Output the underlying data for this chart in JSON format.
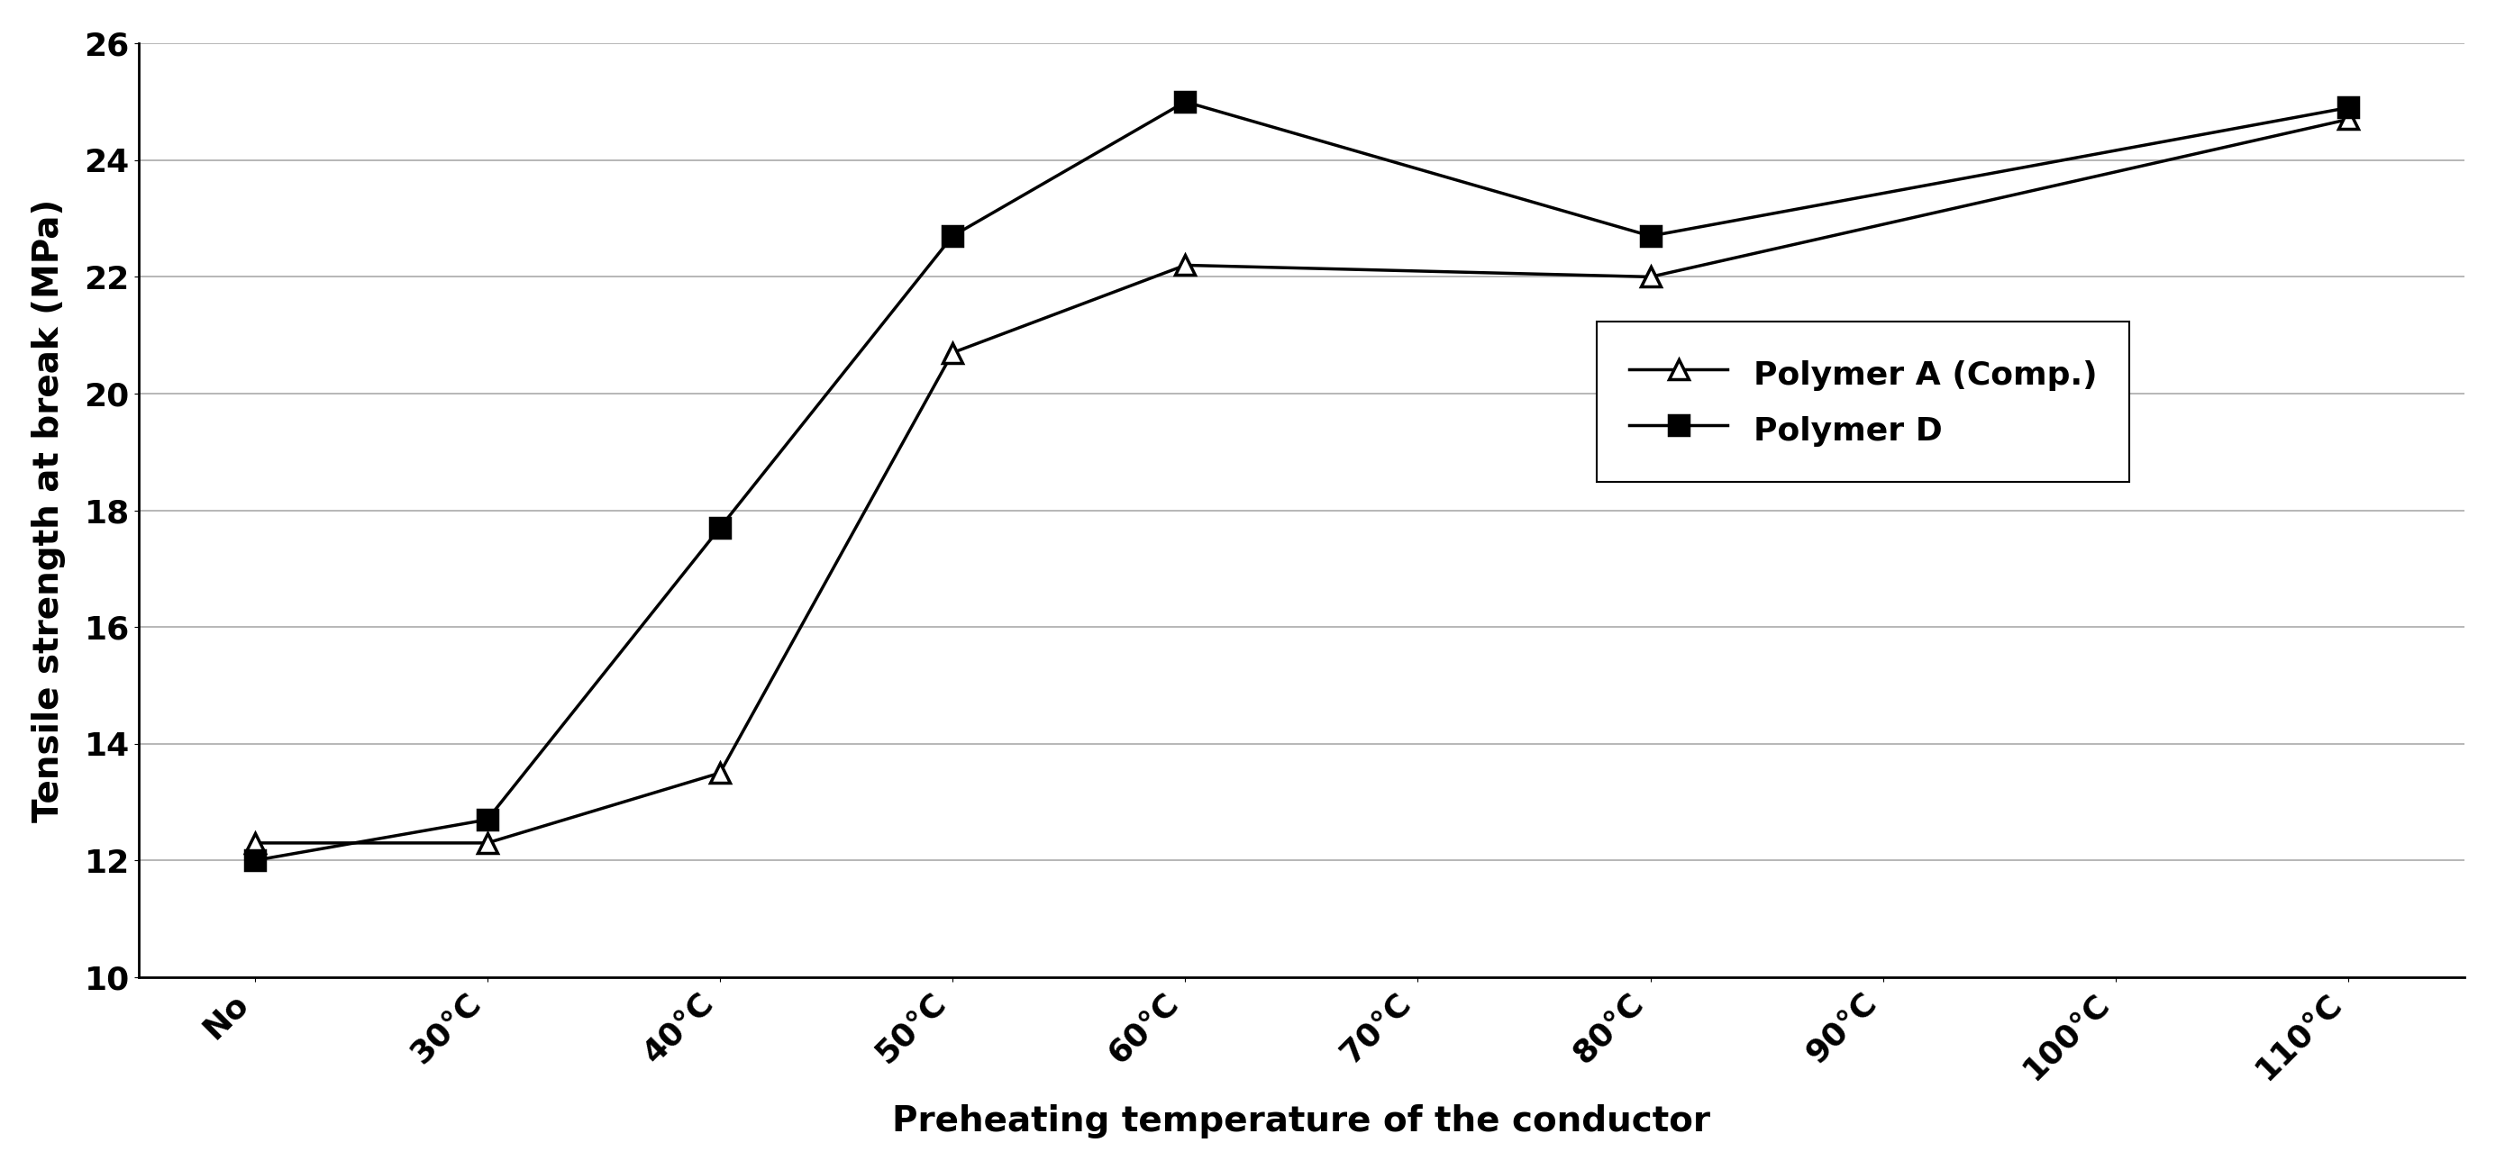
{
  "x_labels": [
    "No",
    "30°C",
    "40°C",
    "50°C",
    "60°C",
    "70°C",
    "80°C",
    "90°C",
    "100°C",
    "110°C"
  ],
  "x_values": [
    0,
    1,
    2,
    3,
    4,
    5,
    6,
    7,
    8,
    9
  ],
  "polymer_a_x": [
    0,
    1,
    2,
    3,
    4,
    6,
    9
  ],
  "polymer_a_y": [
    12.3,
    12.3,
    13.5,
    20.7,
    22.2,
    22.0,
    24.7
  ],
  "polymer_d_x": [
    0,
    1,
    2,
    3,
    4,
    6,
    9
  ],
  "polymer_d_y": [
    12.0,
    12.7,
    17.7,
    22.7,
    25.0,
    22.7,
    24.9
  ],
  "polymer_a_color": "#000000",
  "polymer_d_color": "#000000",
  "ylabel": "Tensile strength at break (MPa)",
  "xlabel": "Preheating temperature of the conductor",
  "ylim": [
    10,
    26
  ],
  "yticks": [
    10,
    12,
    14,
    16,
    18,
    20,
    22,
    24,
    26
  ],
  "legend_labels": [
    "Polymer A (Comp.)",
    "Polymer D"
  ],
  "label_fontsize": 28,
  "tick_fontsize": 26,
  "legend_fontsize": 26,
  "background_color": "#ffffff",
  "grid_color": "#aaaaaa"
}
